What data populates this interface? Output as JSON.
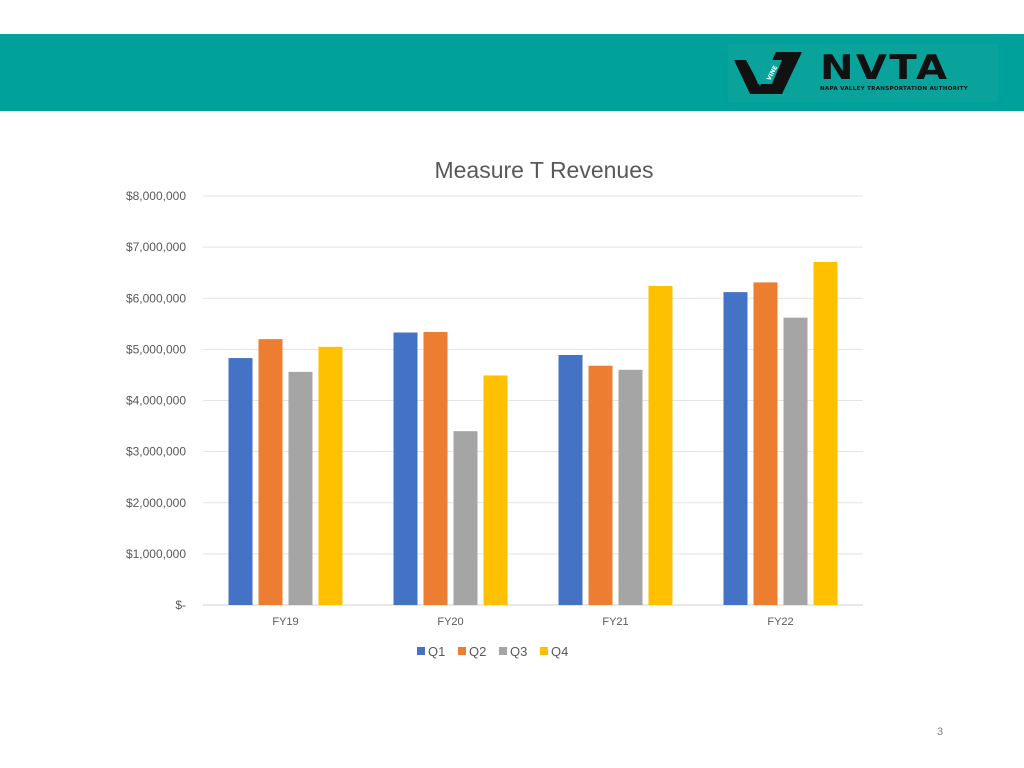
{
  "header": {
    "org_abbrev": "NVTA",
    "org_name": "NAPA VALLEY TRANSPORTATION AUTHORITY",
    "vine_mark": "VINE",
    "band_color": "#00a19a"
  },
  "page_number": "3",
  "chart_data": {
    "type": "bar",
    "title": "Measure T Revenues",
    "xlabel": "",
    "ylabel": "",
    "categories": [
      "FY19",
      "FY20",
      "FY21",
      "FY22"
    ],
    "series": [
      {
        "name": "Q1",
        "color": "#4472c4",
        "values": [
          4830000,
          5330000,
          4890000,
          6120000
        ]
      },
      {
        "name": "Q2",
        "color": "#ed7d31",
        "values": [
          5200000,
          5340000,
          4680000,
          6310000
        ]
      },
      {
        "name": "Q3",
        "color": "#a5a5a5",
        "values": [
          4560000,
          3400000,
          4600000,
          5620000
        ]
      },
      {
        "name": "Q4",
        "color": "#ffc000",
        "values": [
          5050000,
          4490000,
          6240000,
          6710000
        ]
      }
    ],
    "ylim": [
      0,
      8000000
    ],
    "yticks": [
      0,
      1000000,
      2000000,
      3000000,
      4000000,
      5000000,
      6000000,
      7000000,
      8000000
    ],
    "ytick_labels": [
      "$-",
      "$1,000,000",
      "$2,000,000",
      "$3,000,000",
      "$4,000,000",
      "$5,000,000",
      "$6,000,000",
      "$7,000,000",
      "$8,000,000"
    ],
    "grid": true,
    "legend": "bottom"
  }
}
